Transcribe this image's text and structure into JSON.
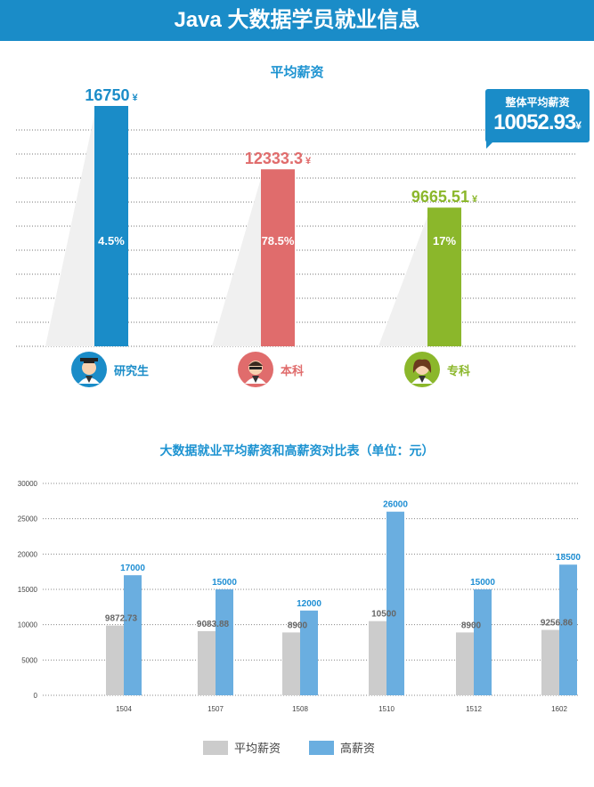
{
  "header": {
    "title": "Java 大数据学员就业信息"
  },
  "chart1": {
    "title": "平均薪资",
    "callout_label": "整体平均薪资",
    "callout_value": "10052.93",
    "currency": "¥"
  },
  "chart2": {
    "title": "大数据就业平均薪资和高薪资对比表（单位：元）",
    "legend": [
      "平均薪资",
      "高薪资"
    ]
  },
  "colors": {
    "banner": "#1a8cc8",
    "title_blue": "#1d93d1",
    "graduate": "#1a8cc8",
    "bachelor": "#e06c6c",
    "associate": "#8bb72b",
    "avg_gray": "#cccccc",
    "high_blue": "#6aaee0",
    "high_label": "#1e8ed3"
  },
  "icons": [
    "graduate-avatar-icon",
    "bachelor-avatar-icon",
    "associate-avatar-icon"
  ],
  "chart_data": [
    {
      "type": "bar",
      "title": "平均薪资",
      "categories": [
        "研究生",
        "本科",
        "专科"
      ],
      "values": [
        16750,
        12333.3,
        9665.51
      ],
      "value_labels": [
        "16750",
        "12333.3",
        "9665.51"
      ],
      "percent_labels": [
        "4.5%",
        "78.5%",
        "17%"
      ],
      "annotation": "整体平均薪资 10052.93¥",
      "grid": true
    },
    {
      "type": "bar",
      "title": "大数据就业平均薪资和高薪资对比表（单位：元）",
      "categories": [
        "1504",
        "1507",
        "1508",
        "1510",
        "1512",
        "1602"
      ],
      "series": [
        {
          "name": "平均薪资",
          "values": [
            9872.73,
            9083.88,
            8900,
            10500,
            8900,
            9256.86
          ]
        },
        {
          "name": "高薪资",
          "values": [
            17000,
            15000,
            12000,
            26000,
            15000,
            18500
          ]
        }
      ],
      "value_labels": {
        "avg": [
          "9872.73",
          "9083.88",
          "8900",
          "10500",
          "8900",
          "9256.86"
        ],
        "high": [
          "17000",
          "15000",
          "12000",
          "26000",
          "15000",
          "18500"
        ]
      },
      "y_ticks": [
        "0",
        "5000",
        "10000",
        "15000",
        "20000",
        "25000",
        "30000"
      ],
      "ylim": [
        0,
        30000
      ],
      "grid": true,
      "legend_position": "bottom"
    }
  ]
}
